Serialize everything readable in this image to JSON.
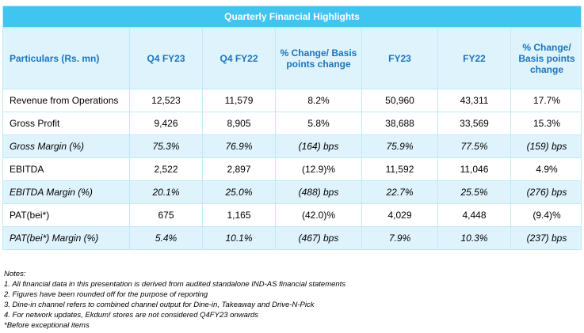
{
  "title": "Quarterly Financial Highlights",
  "columns": [
    "Particulars (Rs. mn)",
    "Q4 FY23",
    "Q4 FY22",
    "% Change/ Basis points change",
    "FY23",
    "FY22",
    "% Change/ Basis points change"
  ],
  "rows": [
    {
      "cells": [
        "Revenue from Operations",
        "12,523",
        "11,579",
        "8.2%",
        "50,960",
        "43,311",
        "17.7%"
      ],
      "italic": false
    },
    {
      "cells": [
        "Gross Profit",
        "9,426",
        "8,905",
        "5.8%",
        "38,688",
        "33,569",
        "15.3%"
      ],
      "italic": false
    },
    {
      "cells": [
        "Gross Margin (%)",
        "75.3%",
        "76.9%",
        "(164) bps",
        "75.9%",
        "77.5%",
        "(159) bps"
      ],
      "italic": true
    },
    {
      "cells": [
        "EBITDA",
        "2,522",
        "2,897",
        "(12.9)%",
        "11,592",
        "11,046",
        "4.9%"
      ],
      "italic": false
    },
    {
      "cells": [
        "EBITDA Margin (%)",
        "20.1%",
        "25.0%",
        "(488) bps",
        "22.7%",
        "25.5%",
        "(276) bps"
      ],
      "italic": true
    },
    {
      "cells": [
        "PAT(bei*)",
        "675",
        "1,165",
        "(42.0)%",
        "4,029",
        "4,448",
        "(9.4)%"
      ],
      "italic": false
    },
    {
      "cells": [
        "PAT(bei*) Margin (%)",
        "5.4%",
        "10.1%",
        "(467) bps",
        "7.9%",
        "10.3%",
        "(237) bps"
      ],
      "italic": true
    }
  ],
  "notes": [
    "Notes:",
    "1. All financial data in this presentation is derived from audited standalone IND-AS financial statements",
    "2. Figures have been rounded off for the purpose of reporting",
    "3. Dine-in channel refers to combined channel output for Dine-in, Takeaway and Drive-N-Pick",
    "4. For network updates, Ekdum! stores are not considered Q4FY23 onwards",
    "*Before exceptional items"
  ]
}
